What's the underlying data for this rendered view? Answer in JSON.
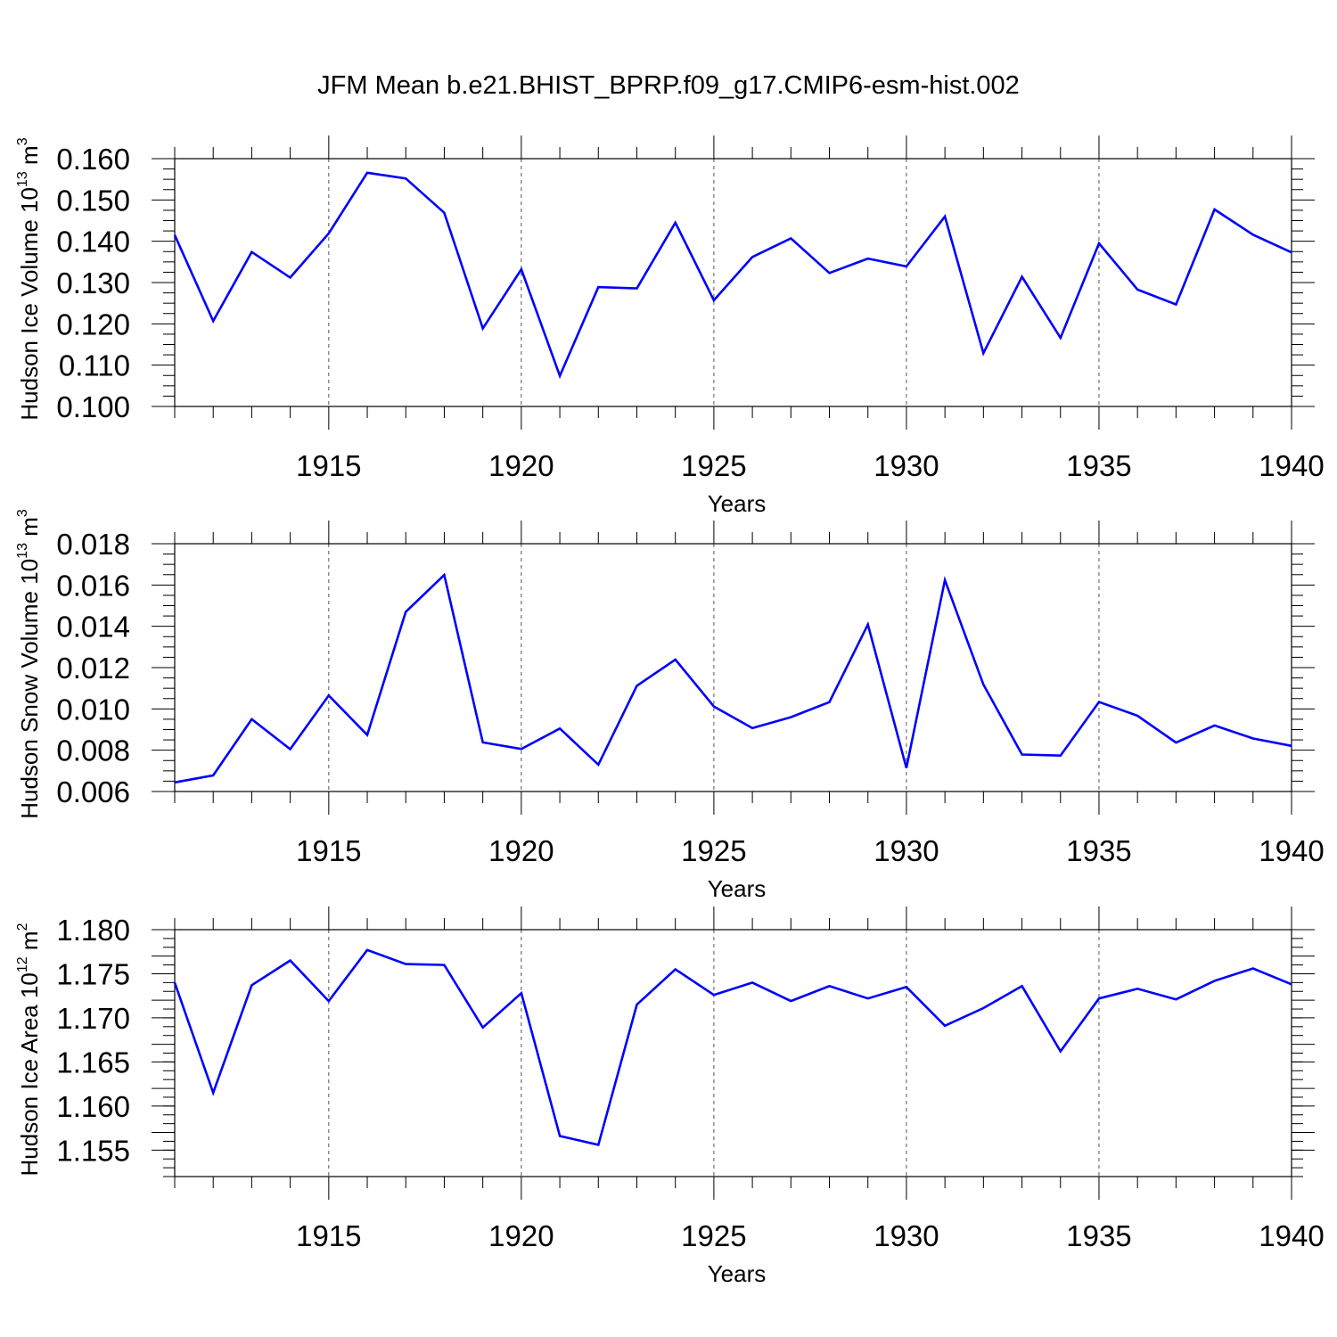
{
  "title": "JFM Mean b.e21.BHIST_BPRP.f09_g17.CMIP6-esm-hist.002",
  "chart_data": [
    {
      "type": "line",
      "ylabel": "Hudson Ice Volume 10",
      "ylabel_exp": "13",
      "ylabel_unit": " m",
      "ylabel_unit_exp": "3",
      "xlabel": "Years",
      "xlim": [
        1911,
        1940
      ],
      "ylim": [
        0.1,
        0.16
      ],
      "yticks": [
        "0.100",
        "0.110",
        "0.120",
        "0.130",
        "0.140",
        "0.150",
        "0.160"
      ],
      "xticks": [
        "1915",
        "1920",
        "1925",
        "1930",
        "1935",
        "1940"
      ],
      "color": "#0000ff",
      "x": [
        1911,
        1912,
        1913,
        1914,
        1915,
        1916,
        1917,
        1918,
        1919,
        1920,
        1921,
        1922,
        1923,
        1924,
        1925,
        1926,
        1927,
        1928,
        1929,
        1930,
        1931,
        1932,
        1933,
        1934,
        1935,
        1936,
        1937,
        1938,
        1939,
        1940
      ],
      "values": [
        0.1415,
        0.1207,
        0.1374,
        0.1312,
        0.1419,
        0.1566,
        0.1552,
        0.1469,
        0.1189,
        0.1332,
        0.1074,
        0.1289,
        0.1286,
        0.1445,
        0.1257,
        0.1362,
        0.1407,
        0.1323,
        0.1358,
        0.1339,
        0.146,
        0.1129,
        0.1314,
        0.1166,
        0.1395,
        0.1283,
        0.1247,
        0.1477,
        0.1416,
        0.1373
      ]
    },
    {
      "type": "line",
      "ylabel": "Hudson Snow Volume 10",
      "ylabel_exp": "13",
      "ylabel_unit": " m",
      "ylabel_unit_exp": "3",
      "xlabel": "Years",
      "xlim": [
        1911,
        1940
      ],
      "ylim": [
        0.006,
        0.018
      ],
      "yticks": [
        "0.006",
        "0.008",
        "0.010",
        "0.012",
        "0.014",
        "0.016",
        "0.018"
      ],
      "xticks": [
        "1915",
        "1920",
        "1925",
        "1930",
        "1935",
        "1940"
      ],
      "color": "#0000ff",
      "x": [
        1911,
        1912,
        1913,
        1914,
        1915,
        1916,
        1917,
        1918,
        1919,
        1920,
        1921,
        1922,
        1923,
        1924,
        1925,
        1926,
        1927,
        1928,
        1929,
        1930,
        1931,
        1932,
        1933,
        1934,
        1935,
        1936,
        1937,
        1938,
        1939,
        1940
      ],
      "values": [
        0.00644,
        0.00678,
        0.0095,
        0.00805,
        0.01065,
        0.00874,
        0.0147,
        0.01649,
        0.00838,
        0.00806,
        0.00905,
        0.0073,
        0.01112,
        0.01239,
        0.01012,
        0.00907,
        0.0096,
        0.01033,
        0.01409,
        0.00714,
        0.01624,
        0.01118,
        0.00779,
        0.00774,
        0.01034,
        0.00967,
        0.00837,
        0.0092,
        0.00857,
        0.00821
      ]
    },
    {
      "type": "line",
      "ylabel": "Hudson Ice Area 10",
      "ylabel_exp": "12",
      "ylabel_unit": " m",
      "ylabel_unit_exp": "2",
      "xlabel": "Years",
      "xlim": [
        1911,
        1940
      ],
      "ylim": [
        1.152,
        1.18
      ],
      "yticks": [
        "1.155",
        "1.160",
        "1.165",
        "1.170",
        "1.175",
        "1.180"
      ],
      "xticks": [
        "1915",
        "1920",
        "1925",
        "1930",
        "1935",
        "1940"
      ],
      "color": "#0000ff",
      "x": [
        1911,
        1912,
        1913,
        1914,
        1915,
        1916,
        1917,
        1918,
        1919,
        1920,
        1921,
        1922,
        1923,
        1924,
        1925,
        1926,
        1927,
        1928,
        1929,
        1930,
        1931,
        1932,
        1933,
        1934,
        1935,
        1936,
        1937,
        1938,
        1939,
        1940
      ],
      "values": [
        1.174,
        1.1615,
        1.1737,
        1.1765,
        1.1719,
        1.1777,
        1.1761,
        1.176,
        1.1689,
        1.1728,
        1.1566,
        1.1556,
        1.1715,
        1.1755,
        1.1726,
        1.174,
        1.1719,
        1.1736,
        1.1722,
        1.1735,
        1.1691,
        1.1711,
        1.1736,
        1.1662,
        1.1722,
        1.1733,
        1.1721,
        1.1742,
        1.1756,
        1.1738
      ]
    }
  ]
}
